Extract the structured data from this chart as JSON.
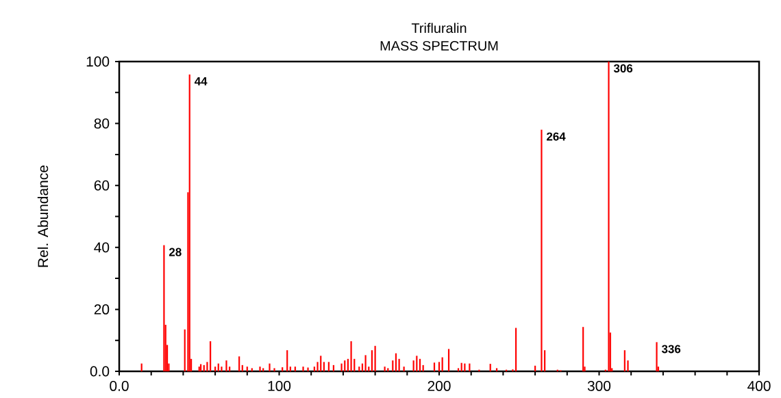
{
  "chart_data": {
    "type": "bar",
    "title": "Trifluralin",
    "subtitle": "MASS SPECTRUM",
    "ylabel": "Rel. Abundance",
    "color": "#ff0000",
    "x": [
      14,
      28,
      29,
      30,
      31,
      41,
      43,
      44,
      45,
      50,
      51,
      53,
      55,
      57,
      60,
      62,
      64,
      67,
      69,
      75,
      77,
      80,
      83,
      88,
      90,
      94,
      97,
      102,
      105,
      107,
      110,
      115,
      118,
      122,
      124,
      126,
      128,
      131,
      134,
      139,
      141,
      143,
      145,
      147,
      150,
      152,
      154,
      156,
      158,
      160,
      166,
      168,
      171,
      173,
      175,
      178,
      184,
      186,
      188,
      190,
      197,
      200,
      202,
      206,
      212,
      214,
      216,
      219,
      225,
      232,
      236,
      242,
      246,
      248,
      260,
      264,
      266,
      274,
      276,
      290,
      291,
      304,
      306,
      307,
      308,
      316,
      318,
      336,
      337
    ],
    "values": [
      2.5,
      40.7,
      15,
      8.5,
      2.5,
      13.5,
      57.8,
      95.8,
      4,
      1.5,
      2.3,
      2,
      3,
      9.7,
      1.5,
      2.5,
      1.5,
      3.5,
      1.5,
      4.8,
      2,
      1.5,
      1,
      1.5,
      1,
      2.5,
      1,
      1.3,
      6.8,
      1.5,
      1.5,
      1.5,
      1.2,
      1.5,
      3,
      5,
      3,
      3,
      2,
      2.5,
      3.5,
      4,
      9.7,
      4,
      1.5,
      2.5,
      5.2,
      1.5,
      6.8,
      8.2,
      1.5,
      1,
      3.5,
      5.8,
      4,
      1.5,
      3.5,
      5,
      4,
      2,
      2.8,
      3,
      4.5,
      7.2,
      1,
      2.7,
      2.5,
      2.5,
      0.5,
      2.4,
      1,
      0.5,
      0.6,
      14,
      1.8,
      78,
      6.8,
      0.5,
      0.3,
      14.3,
      1.5,
      0.5,
      100,
      12.5,
      1,
      6.8,
      3.5,
      9.4,
      1.5
    ],
    "xlim": [
      0,
      400
    ],
    "xticks": [
      {
        "value": 0,
        "label": "0.0"
      },
      {
        "value": 20,
        "label": null
      },
      {
        "value": 40,
        "label": null
      },
      {
        "value": 60,
        "label": null
      },
      {
        "value": 80,
        "label": null
      },
      100,
      {
        "value": 120,
        "label": null
      },
      {
        "value": 140,
        "label": null
      },
      {
        "value": 160,
        "label": null
      },
      {
        "value": 180,
        "label": null
      },
      200,
      {
        "value": 220,
        "label": null
      },
      {
        "value": 240,
        "label": null
      },
      {
        "value": 260,
        "label": null
      },
      {
        "value": 280,
        "label": null
      },
      300,
      {
        "value": 320,
        "label": null
      },
      {
        "value": 340,
        "label": null
      },
      {
        "value": 360,
        "label": null
      },
      {
        "value": 380,
        "label": null
      },
      400
    ],
    "ylim": [
      0,
      100
    ],
    "yticks": [
      {
        "value": 0,
        "label": "0.0"
      },
      {
        "value": 10,
        "label": null
      },
      20,
      {
        "value": 30,
        "label": null
      },
      40,
      {
        "value": 50,
        "label": null
      },
      60,
      {
        "value": 70,
        "label": null
      },
      80,
      {
        "value": 90,
        "label": null
      },
      100
    ],
    "annotations": [
      {
        "text": "28",
        "x": 28,
        "y": 40.7
      },
      {
        "text": "44",
        "x": 44,
        "y": 95.8
      },
      {
        "text": "264",
        "x": 264,
        "y": 78
      },
      {
        "text": "306",
        "x": 306,
        "y": 100
      },
      {
        "text": "336",
        "x": 336,
        "y": 9.4
      }
    ]
  }
}
